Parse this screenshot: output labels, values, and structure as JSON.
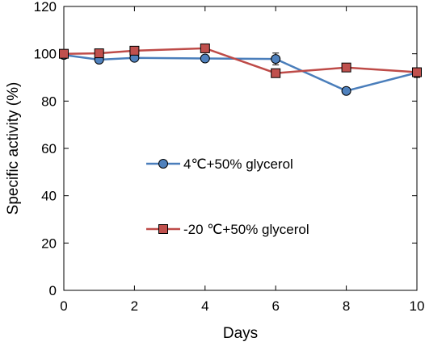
{
  "chart_data": {
    "type": "line",
    "title": "",
    "xlabel": "Days",
    "ylabel": "Specific activity (%)",
    "xlim": [
      0,
      10
    ],
    "ylim": [
      0,
      120
    ],
    "xticks": [
      0,
      2,
      4,
      6,
      8,
      10
    ],
    "yticks": [
      0,
      20,
      40,
      60,
      80,
      100,
      120
    ],
    "grid": false,
    "legend_position": "center-left",
    "series": [
      {
        "name": "4℃+50% glycerol",
        "marker": "circle",
        "color": "#4a7ebb",
        "marker_fill": "#4f81bd",
        "x": [
          0,
          1,
          2,
          4,
          6,
          8,
          10
        ],
        "y": [
          99.5,
          97.5,
          98.3,
          98.0,
          97.8,
          84.3,
          92.0
        ],
        "error": [
          0,
          1.2,
          0,
          0,
          2.5,
          0,
          2.0
        ]
      },
      {
        "name": "-20 ℃+50% glycerol",
        "marker": "square",
        "color": "#be4b48",
        "marker_fill": "#c0504d",
        "x": [
          0,
          1,
          2,
          4,
          6,
          8,
          10
        ],
        "y": [
          100.0,
          100.2,
          101.3,
          102.3,
          91.8,
          94.2,
          92.2
        ],
        "error": [
          0,
          0,
          0,
          0,
          0,
          0,
          0
        ]
      }
    ]
  }
}
